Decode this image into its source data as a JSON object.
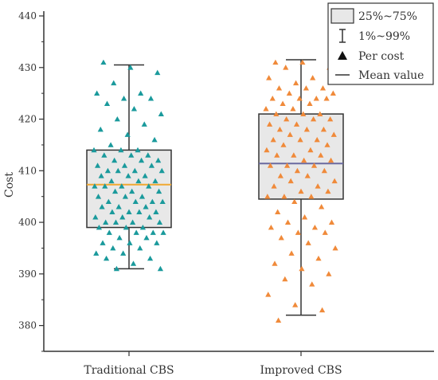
{
  "chart_data": {
    "type": "boxplot",
    "title": "",
    "xlabel": "",
    "ylabel": "Cost",
    "ylim": [
      375,
      440
    ],
    "yticks": [
      380,
      390,
      400,
      410,
      420,
      430,
      440
    ],
    "categories": [
      "Traditional CBS",
      "Improved CBS"
    ],
    "legend": {
      "placement": "top-right",
      "entries": [
        {
          "symbol": "box",
          "label": "25%~75%"
        },
        {
          "symbol": "whisker",
          "label": "1%~99%"
        },
        {
          "symbol": "triangle",
          "label": "Per cost"
        },
        {
          "symbol": "line",
          "label": "Mean value"
        }
      ]
    },
    "series": [
      {
        "category": "Traditional CBS",
        "q1": 399,
        "q3": 414,
        "mean": 407.3,
        "whisker_low": 391,
        "whisker_high": 430.5,
        "point_color": "#1a9a9c",
        "mean_color": "#f0a830",
        "points": [
          431,
          430,
          429,
          427,
          425,
          425,
          424,
          424,
          423,
          422,
          421,
          420,
          419,
          418,
          417,
          416,
          415,
          414,
          414,
          414,
          413,
          413,
          413,
          412,
          412,
          412,
          411,
          411,
          411,
          410,
          410,
          410,
          410,
          409,
          409,
          409,
          408,
          408,
          408,
          407,
          407,
          407,
          407,
          406,
          406,
          406,
          405,
          405,
          405,
          404,
          404,
          404,
          404,
          403,
          403,
          403,
          402,
          402,
          402,
          402,
          401,
          401,
          401,
          400,
          400,
          400,
          400,
          399,
          399,
          399,
          398,
          398,
          398,
          398,
          397,
          397,
          396,
          396,
          396,
          395,
          395,
          394,
          394,
          393,
          393,
          392,
          391,
          391
        ]
      },
      {
        "category": "Improved CBS",
        "q1": 404.5,
        "q3": 421,
        "mean": 411.4,
        "whisker_low": 382,
        "whisker_high": 431.5,
        "point_color": "#f08a3a",
        "mean_color": "#6a6aa0",
        "points": [
          431,
          431,
          430,
          430,
          428,
          428,
          427,
          426,
          426,
          426,
          425,
          425,
          424,
          424,
          424,
          424,
          423,
          423,
          422,
          422,
          421,
          421,
          421,
          420,
          420,
          420,
          419,
          419,
          418,
          418,
          418,
          417,
          417,
          416,
          416,
          416,
          415,
          415,
          414,
          414,
          413,
          413,
          413,
          412,
          412,
          411,
          411,
          411,
          410,
          410,
          409,
          409,
          408,
          408,
          407,
          407,
          406,
          406,
          405,
          405,
          405,
          404,
          403,
          402,
          401,
          400,
          400,
          399,
          399,
          398,
          398,
          397,
          396,
          395,
          394,
          393,
          392,
          391,
          390,
          389,
          388,
          386,
          384,
          383,
          381
        ]
      }
    ],
    "colors": {
      "box_fill": "#e8e8e8",
      "box_stroke": "#333333",
      "axis": "#333333"
    }
  }
}
